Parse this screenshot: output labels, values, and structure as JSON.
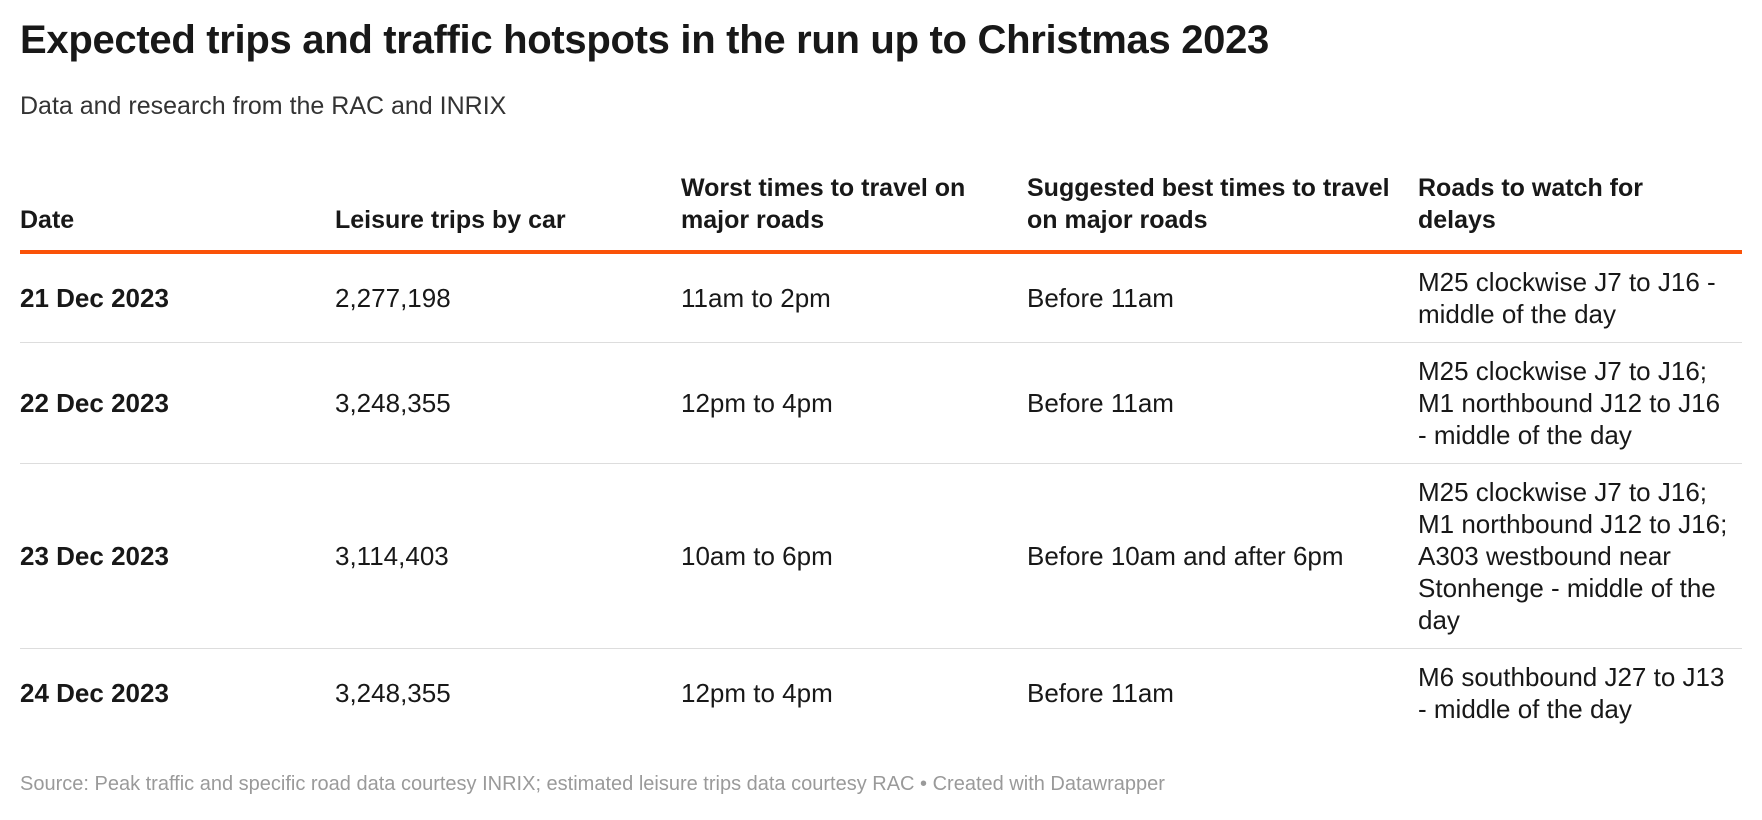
{
  "header": {
    "title": "Expected trips and traffic hotspots in the run up to Christmas 2023",
    "subtitle": "Data and research from the RAC and INRIX"
  },
  "table": {
    "columns": [
      "Date",
      "Leisure trips by car",
      "Worst times to travel on major roads",
      "Suggested best times to travel on major roads",
      "Roads to watch for delays"
    ],
    "rows": [
      [
        "21 Dec 2023",
        {
          "value": 2277198,
          "label": "2,277,198"
        },
        "11am to 2pm",
        "Before 11am",
        "M25 clockwise J7 to J16 - middle of the day"
      ],
      [
        "22 Dec 2023",
        {
          "value": 3248355,
          "label": "3,248,355"
        },
        "12pm to 4pm",
        "Before 11am",
        "M25 clockwise J7 to J16; M1 northbound J12 to J16 - middle of the day"
      ],
      [
        "23 Dec 2023",
        {
          "value": 3114403,
          "label": "3,114,403"
        },
        "10am to 6pm",
        "Before 10am and after 6pm",
        "M25 clockwise J7 to J16; M1 northbound J12 to J16; A303 westbound near Stonhenge - middle of the day"
      ],
      [
        "24 Dec 2023",
        {
          "value": 3248355,
          "label": "3,248,355"
        },
        "12pm to 4pm",
        "Before 11am",
        "M6 southbound J27 to J13 - middle of the day"
      ]
    ]
  },
  "footer": "Source: Peak traffic and specific road data courtesy INRIX; estimated leisure trips data courtesy RAC • Created with Datawrapper"
}
